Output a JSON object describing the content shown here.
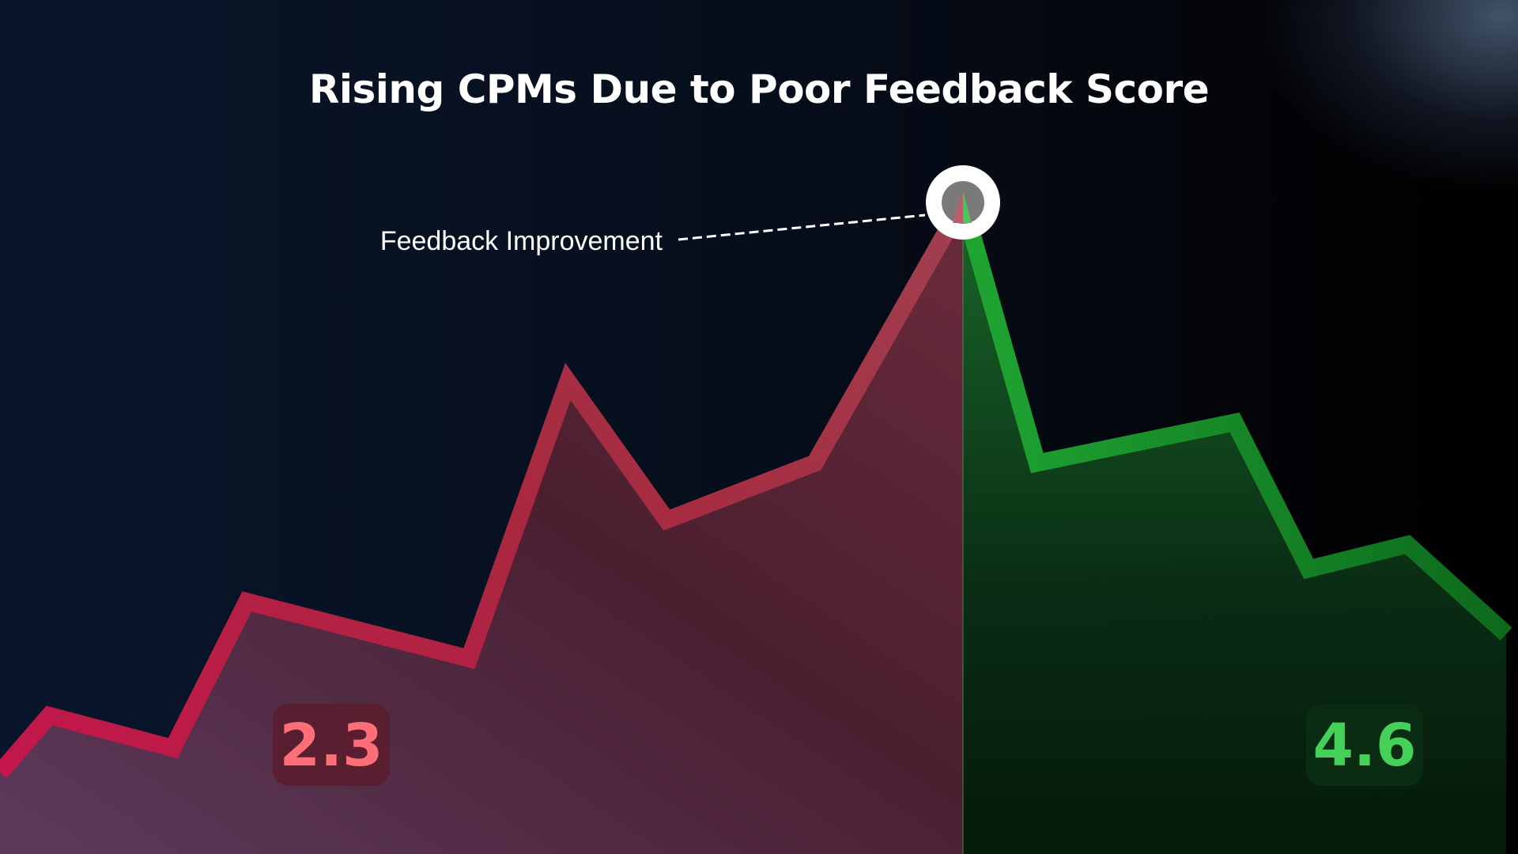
{
  "chart_data": {
    "type": "area",
    "title": "Rising CPMs Due to Poor Feedback Score",
    "xlabel": "",
    "ylabel": "",
    "ylim": [
      0,
      100
    ],
    "xlim": [
      0,
      19
    ],
    "grid": false,
    "legend": "none",
    "series": [
      {
        "color": "#c0224f",
        "x": [
          0,
          1,
          3.5,
          5,
          9.5,
          11.5,
          13.5,
          16.5,
          19.5
        ],
        "values": [
          10,
          17,
          13,
          31,
          24,
          58,
          41,
          48,
          80
        ]
      },
      {
        "color": "#1fa532",
        "x": [
          19.5,
          21,
          25,
          26.5,
          28.5,
          30.5
        ],
        "values": [
          80,
          48,
          53,
          35,
          38,
          27
        ]
      }
    ],
    "annotation": {
      "text": "Feedback Improvement",
      "x": 19.5,
      "y": 80
    },
    "scores": [
      {
        "text": "2.3",
        "color": "#ff6f78",
        "background": "#5a1e2e"
      },
      {
        "text": "4.6",
        "color": "#45d05a",
        "background": "#0b2e14"
      }
    ]
  }
}
